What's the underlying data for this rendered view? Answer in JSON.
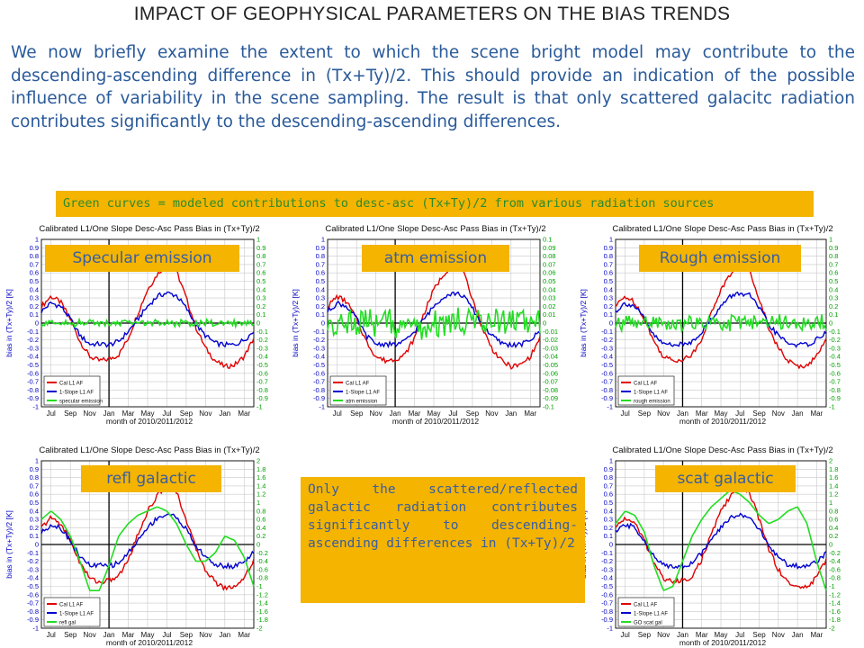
{
  "title": "IMPACT OF GEOPHYSICAL PARAMETERS ON THE BIAS TRENDS",
  "intro": "We now briefly examine the extent to which the scene bright model may contribute to the descending-ascending difference in (Tx+Ty)/2. This should provide an indication of the possible influence of variability in the scene sampling. The result is that only scattered galacitc radiation contributes significantly to the descending-ascending differences.",
  "green_note": "Green curves = modeled contributions to desc-asc (Tx+Ty)/2 from various radiation sources",
  "side_note": "Only the scattered/reflected galactic radiation contributes significantly to descending-ascending differences in (Tx+Ty)/2",
  "colors": {
    "highlight": "#f4b400",
    "cal": "#e00000",
    "slope": "#0000d0",
    "model": "#22dd22",
    "text_blue": "#3a5ea0"
  },
  "chart_data": [
    {
      "id": "specular",
      "type": "line",
      "label": "Specular emission",
      "title": "Calibrated L1/One Slope Desc-Asc Pass Bias in (Tx+Ty)/2",
      "xlabel": "month of 2010/2011/2012",
      "ylabel": "bias in (Tx+Ty)/2 [K]",
      "x_ticks": [
        "Jul",
        "Sep",
        "Nov",
        "Jan",
        "Mar",
        "May",
        "Jul",
        "Sep",
        "Nov",
        "Jan",
        "Mar"
      ],
      "ylim": [
        -1,
        1
      ],
      "left_ticks": [
        "1",
        "0.9",
        "0.8",
        "0.7",
        "0.6",
        "0.5",
        "0.4",
        "0.3",
        "0.2",
        "0.1",
        "0",
        "-0.1",
        "-0.2",
        "-0.3",
        "-0.4",
        "-0.5",
        "-0.6",
        "-0.7",
        "-0.8",
        "-0.9",
        "-1"
      ],
      "y2lim": [
        -1,
        1
      ],
      "right_ticks": [
        "1",
        "0.9",
        "0.8",
        "0.7",
        "0.6",
        "0.5",
        "0.4",
        "0.3",
        "0.2",
        "0.1",
        "0",
        "-0.1",
        "-0.2",
        "-0.3",
        "-0.4",
        "-0.5",
        "-0.6",
        "-0.7",
        "-0.8",
        "-0.9",
        "-1"
      ],
      "series": [
        {
          "name": "Cal L1 AF",
          "color": "#e00000",
          "axis": "left",
          "values": [
            0.2,
            0.32,
            0.25,
            0.05,
            -0.22,
            -0.4,
            -0.45,
            -0.43,
            -0.38,
            -0.18,
            0.12,
            0.4,
            0.58,
            0.72,
            0.62,
            0.3,
            -0.05,
            -0.3,
            -0.45,
            -0.52,
            -0.5,
            -0.4,
            -0.18
          ]
        },
        {
          "name": "1-Slope L1 AF",
          "color": "#0000d0",
          "axis": "left",
          "values": [
            0.14,
            0.24,
            0.2,
            0.05,
            -0.15,
            -0.25,
            -0.25,
            -0.26,
            -0.22,
            -0.1,
            0.05,
            0.2,
            0.32,
            0.36,
            0.33,
            0.18,
            -0.02,
            -0.15,
            -0.24,
            -0.26,
            -0.26,
            -0.2,
            -0.1
          ]
        },
        {
          "name": "specular emission",
          "color": "#22dd22",
          "axis": "right",
          "center": 0.0,
          "amp": 0.05,
          "noisy": true
        }
      ]
    },
    {
      "id": "atm",
      "type": "line",
      "label": "atm emission",
      "title": "Calibrated L1/One Slope Desc-Asc Pass Bias in (Tx+Ty)/2",
      "xlabel": "month of 2010/2011/2012",
      "ylabel": "bias in (Tx+Ty)/2 [K]",
      "x_ticks": [
        "Jul",
        "Sep",
        "Nov",
        "Jan",
        "Mar",
        "May",
        "Jul",
        "Sep",
        "Nov",
        "Jan",
        "Mar"
      ],
      "ylim": [
        -1,
        1
      ],
      "left_ticks": [
        "1",
        "0.9",
        "0.8",
        "0.7",
        "0.6",
        "0.5",
        "0.4",
        "0.3",
        "0.2",
        "0.1",
        "0",
        "-0.1",
        "-0.2",
        "-0.3",
        "-0.4",
        "-0.5",
        "-0.6",
        "-0.7",
        "-0.8",
        "-0.9",
        "-1"
      ],
      "y2lim": [
        -0.1,
        0.1
      ],
      "right_ticks": [
        "0.1",
        "0.09",
        "0.08",
        "0.07",
        "0.06",
        "0.05",
        "0.04",
        "0.03",
        "0.02",
        "0.01",
        "0",
        "-0.01",
        "-0.02",
        "-0.03",
        "-0.04",
        "-0.05",
        "-0.06",
        "-0.07",
        "-0.08",
        "-0.09",
        "-0.1"
      ],
      "series": [
        {
          "name": "Cal L1 AF",
          "color": "#e00000",
          "axis": "left",
          "values": [
            0.2,
            0.32,
            0.25,
            0.05,
            -0.22,
            -0.4,
            -0.45,
            -0.43,
            -0.38,
            -0.18,
            0.12,
            0.4,
            0.58,
            0.72,
            0.62,
            0.3,
            -0.05,
            -0.3,
            -0.45,
            -0.52,
            -0.5,
            -0.4,
            -0.18
          ]
        },
        {
          "name": "1-Slope L1 AF",
          "color": "#0000d0",
          "axis": "left",
          "values": [
            0.14,
            0.24,
            0.2,
            0.05,
            -0.15,
            -0.25,
            -0.25,
            -0.26,
            -0.22,
            -0.1,
            0.05,
            0.2,
            0.32,
            0.36,
            0.33,
            0.18,
            -0.02,
            -0.15,
            -0.24,
            -0.26,
            -0.26,
            -0.2,
            -0.1
          ]
        },
        {
          "name": "atm emission",
          "color": "#22dd22",
          "axis": "right",
          "center": 0.0,
          "amp": 0.02,
          "noisy": true
        }
      ]
    },
    {
      "id": "rough",
      "type": "line",
      "label": "Rough emission",
      "title": "Calibrated L1/One Slope Desc-Asc Pass Bias in (Tx+Ty)/2",
      "xlabel": "month of 2010/2011/2012",
      "ylabel": "bias in (Tx+Ty)/2 [K]",
      "x_ticks": [
        "Jul",
        "Sep",
        "Nov",
        "Jan",
        "Mar",
        "May",
        "Jul",
        "Sep",
        "Nov",
        "Jan",
        "Mar"
      ],
      "ylim": [
        -1,
        1
      ],
      "left_ticks": [
        "1",
        "0.9",
        "0.8",
        "0.7",
        "0.6",
        "0.5",
        "0.4",
        "0.3",
        "0.2",
        "0.1",
        "0",
        "-0.1",
        "-0.2",
        "-0.3",
        "-0.4",
        "-0.5",
        "-0.6",
        "-0.7",
        "-0.8",
        "-0.9",
        "-1"
      ],
      "y2lim": [
        -1,
        1
      ],
      "right_ticks": [
        "1",
        "0.9",
        "0.8",
        "0.7",
        "0.6",
        "0.5",
        "0.4",
        "0.3",
        "0.2",
        "0.1",
        "0",
        "-0.1",
        "-0.2",
        "-0.3",
        "-0.4",
        "-0.5",
        "-0.6",
        "-0.7",
        "-0.8",
        "-0.9",
        "-1"
      ],
      "series": [
        {
          "name": "Cal L1 AF",
          "color": "#e00000",
          "axis": "left",
          "values": [
            0.2,
            0.32,
            0.25,
            0.05,
            -0.22,
            -0.4,
            -0.45,
            -0.43,
            -0.38,
            -0.18,
            0.12,
            0.4,
            0.58,
            0.72,
            0.62,
            0.3,
            -0.05,
            -0.3,
            -0.45,
            -0.52,
            -0.5,
            -0.4,
            -0.18
          ]
        },
        {
          "name": "1-Slope L1 AF",
          "color": "#0000d0",
          "axis": "left",
          "values": [
            0.14,
            0.24,
            0.2,
            0.05,
            -0.15,
            -0.25,
            -0.25,
            -0.26,
            -0.22,
            -0.1,
            0.05,
            0.2,
            0.32,
            0.36,
            0.33,
            0.18,
            -0.02,
            -0.15,
            -0.24,
            -0.26,
            -0.26,
            -0.2,
            -0.1
          ]
        },
        {
          "name": "rough emission",
          "color": "#22dd22",
          "axis": "right",
          "center": 0.0,
          "amp": 0.12,
          "noisy": true
        }
      ]
    },
    {
      "id": "refl",
      "type": "line",
      "label": "refl galactic",
      "title": "Calibrated L1/One Slope Desc-Asc Pass Bias in (Tx+Ty)/2",
      "xlabel": "month of 2010/2011/2012",
      "ylabel": "bias in (Tx+Ty)/2 [K]",
      "x_ticks": [
        "Jul",
        "Sep",
        "Nov",
        "Jan",
        "Mar",
        "May",
        "Jul",
        "Sep",
        "Nov",
        "Jan",
        "Mar"
      ],
      "ylim": [
        -1,
        1
      ],
      "left_ticks": [
        "1",
        "0.9",
        "0.8",
        "0.7",
        "0.6",
        "0.5",
        "0.4",
        "0.3",
        "0.2",
        "0.1",
        "0",
        "-0.1",
        "-0.2",
        "-0.3",
        "-0.4",
        "-0.5",
        "-0.6",
        "-0.7",
        "-0.8",
        "-0.9",
        "-1"
      ],
      "y2lim": [
        -2,
        2
      ],
      "right_ticks": [
        "2",
        "1.8",
        "1.6",
        "1.4",
        "1.2",
        "1",
        "0.8",
        "0.6",
        "0.4",
        "0.2",
        "0",
        "-0.2",
        "-0.4",
        "-0.6",
        "-0.8",
        "-1",
        "-1.2",
        "-1.4",
        "-1.6",
        "-1.8",
        "-2"
      ],
      "series": [
        {
          "name": "Cal L1 AF",
          "color": "#e00000",
          "axis": "left",
          "values": [
            0.2,
            0.32,
            0.25,
            0.05,
            -0.22,
            -0.4,
            -0.45,
            -0.43,
            -0.38,
            -0.18,
            0.12,
            0.4,
            0.58,
            0.72,
            0.62,
            0.3,
            -0.05,
            -0.3,
            -0.45,
            -0.52,
            -0.5,
            -0.4,
            -0.18
          ]
        },
        {
          "name": "1-Slope L1 AF",
          "color": "#0000d0",
          "axis": "left",
          "values": [
            0.14,
            0.24,
            0.2,
            0.05,
            -0.15,
            -0.25,
            -0.25,
            -0.26,
            -0.22,
            -0.1,
            0.05,
            0.2,
            0.32,
            0.36,
            0.33,
            0.18,
            -0.02,
            -0.15,
            -0.24,
            -0.26,
            -0.26,
            -0.2,
            -0.1
          ]
        },
        {
          "name": "refl gal",
          "color": "#22dd22",
          "axis": "right",
          "values": [
            0.6,
            0.8,
            0.6,
            0.2,
            -0.4,
            -1.1,
            -1.1,
            -0.5,
            0.2,
            0.5,
            0.7,
            0.8,
            0.9,
            0.8,
            0.5,
            0.0,
            -0.4,
            -0.4,
            -0.2,
            0.2,
            0.1,
            -0.3,
            -1.0
          ]
        }
      ]
    },
    {
      "id": "scat",
      "type": "line",
      "label": "scat galactic",
      "title": "Calibrated L1/One Slope Desc-Asc Pass Bias in (Tx+Ty)/2",
      "xlabel": "month of 2010/2011/2012",
      "ylabel": "bias in (Tx+Ty)/2 [K]",
      "x_ticks": [
        "Jul",
        "Sep",
        "Nov",
        "Jan",
        "Mar",
        "May",
        "Jul",
        "Sep",
        "Nov",
        "Jan",
        "Mar"
      ],
      "ylim": [
        -1,
        1
      ],
      "left_ticks": [
        "1",
        "0.9",
        "0.8",
        "0.7",
        "0.6",
        "0.5",
        "0.4",
        "0.3",
        "0.2",
        "0.1",
        "0",
        "-0.1",
        "-0.2",
        "-0.3",
        "-0.4",
        "-0.5",
        "-0.6",
        "-0.7",
        "-0.8",
        "-0.9",
        "-1"
      ],
      "y2lim": [
        -2,
        2
      ],
      "right_ticks": [
        "2",
        "1.8",
        "1.6",
        "1.4",
        "1.2",
        "1",
        "0.8",
        "0.6",
        "0.4",
        "0.2",
        "0",
        "-0.2",
        "-0.4",
        "-0.6",
        "-0.8",
        "-1",
        "-1.2",
        "-1.4",
        "-1.6",
        "-1.8",
        "-2"
      ],
      "series": [
        {
          "name": "Cal L1 AF",
          "color": "#e00000",
          "axis": "left",
          "values": [
            0.2,
            0.32,
            0.25,
            0.05,
            -0.22,
            -0.4,
            -0.45,
            -0.43,
            -0.38,
            -0.18,
            0.12,
            0.4,
            0.58,
            0.72,
            0.62,
            0.3,
            -0.05,
            -0.3,
            -0.45,
            -0.52,
            -0.5,
            -0.4,
            -0.18
          ]
        },
        {
          "name": "1-Slope L1 AF",
          "color": "#0000d0",
          "axis": "left",
          "values": [
            0.14,
            0.24,
            0.2,
            0.05,
            -0.15,
            -0.25,
            -0.25,
            -0.26,
            -0.22,
            -0.1,
            0.05,
            0.2,
            0.32,
            0.36,
            0.33,
            0.18,
            -0.02,
            -0.15,
            -0.24,
            -0.26,
            -0.26,
            -0.2,
            -0.1
          ]
        },
        {
          "name": "GO scat gal",
          "color": "#22dd22",
          "axis": "right",
          "values": [
            0.5,
            0.8,
            0.7,
            0.3,
            -0.5,
            -1.1,
            -1.0,
            -0.4,
            0.2,
            0.6,
            0.9,
            1.1,
            1.3,
            1.2,
            1.0,
            0.7,
            0.5,
            0.6,
            0.8,
            0.9,
            0.5,
            -0.4,
            -1.1
          ]
        }
      ]
    }
  ]
}
